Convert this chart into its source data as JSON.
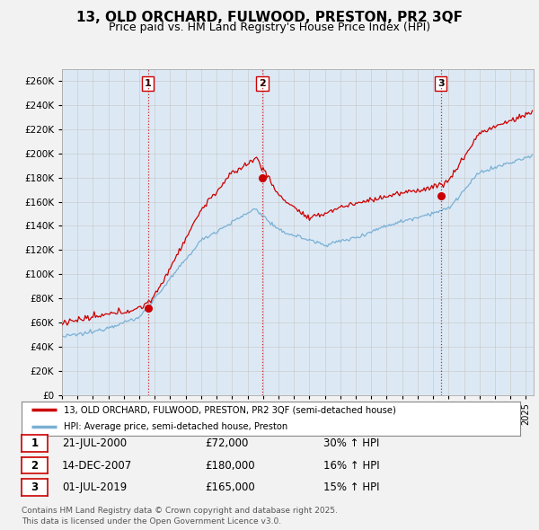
{
  "title": "13, OLD ORCHARD, FULWOOD, PRESTON, PR2 3QF",
  "subtitle": "Price paid vs. HM Land Registry's House Price Index (HPI)",
  "ylabel_vals": [
    0,
    20000,
    40000,
    60000,
    80000,
    100000,
    120000,
    140000,
    160000,
    180000,
    200000,
    220000,
    240000,
    260000
  ],
  "ylim": [
    0,
    270000
  ],
  "xlim_start": 1995.0,
  "xlim_end": 2025.5,
  "grid_color": "#cccccc",
  "background_color": "#f2f2f2",
  "plot_bg_color": "#dce9f5",
  "purchase_dates": [
    2000.554,
    2007.954,
    2019.496
  ],
  "purchase_prices": [
    72000,
    180000,
    165000
  ],
  "purchase_labels": [
    "1",
    "2",
    "3"
  ],
  "vline_color": "#cc0000",
  "vline_style": ":",
  "dot_color": "#cc0000",
  "legend_entry1": "13, OLD ORCHARD, FULWOOD, PRESTON, PR2 3QF (semi-detached house)",
  "legend_entry2": "HPI: Average price, semi-detached house, Preston",
  "table_rows": [
    [
      "1",
      "21-JUL-2000",
      "£72,000",
      "30% ↑ HPI"
    ],
    [
      "2",
      "14-DEC-2007",
      "£180,000",
      "16% ↑ HPI"
    ],
    [
      "3",
      "01-JUL-2019",
      "£165,000",
      "15% ↑ HPI"
    ]
  ],
  "footer": "Contains HM Land Registry data © Crown copyright and database right 2025.\nThis data is licensed under the Open Government Licence v3.0.",
  "hpi_line_color": "#7ab0d4",
  "price_line_color": "#cc0000",
  "title_fontsize": 11,
  "subtitle_fontsize": 9
}
